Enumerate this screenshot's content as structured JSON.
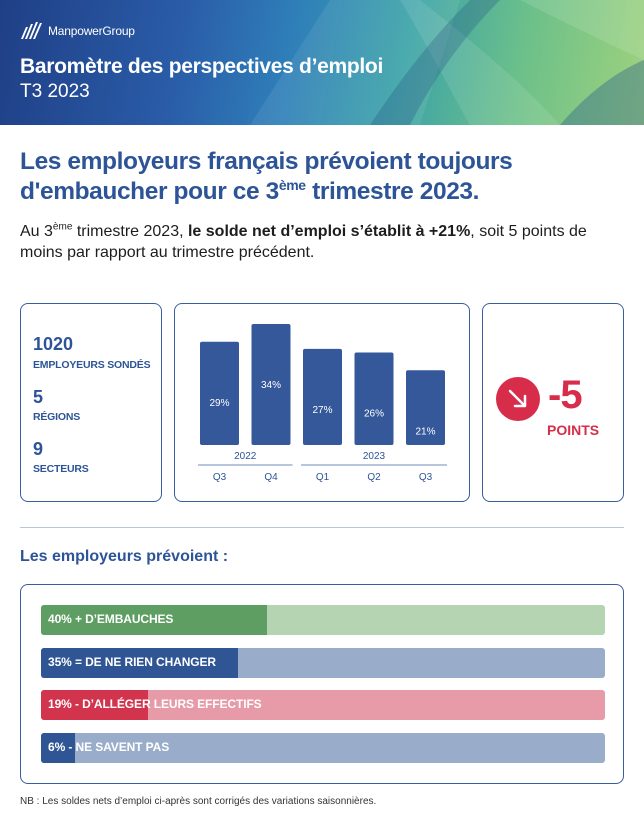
{
  "header": {
    "brand": "ManpowerGroup",
    "title": "Baromètre des perspectives d’emploi",
    "subtitle": "T3 2023",
    "logo_icon": "manpower-logo-icon"
  },
  "headline": {
    "line1": "Les employeurs français prévoient toujours",
    "line2_a": "d'embaucher pour ce 3",
    "line2_sup": "ème",
    "line2_b": " trimestre 2023."
  },
  "intro": {
    "a": "Au 3",
    "sup": "ème",
    "b": " trimestre 2023, ",
    "bold": "le solde net d’emploi s’établit à +21%",
    "c": ", soit 5 points de moins par rapport au trimestre précédent."
  },
  "stats": [
    {
      "value": "1020",
      "label": "EMPLOYEURS SONDÉS"
    },
    {
      "value": "5",
      "label": "RÉGIONS"
    },
    {
      "value": "9",
      "label": "SECTEURS"
    }
  ],
  "delta": {
    "value": "-5",
    "unit": "POINTS",
    "icon": "arrow-down-right-icon",
    "color": "#d72d4a"
  },
  "section_title": "Les employeurs prévoient :",
  "note": "NB : Les soldes nets d’emploi ci-après sont corrigés des variations saisonnières.",
  "colors": {
    "primary": "#2d5497",
    "bar": "#34589a",
    "green": "#5e9e62",
    "green_light": "#b5d4b1",
    "blue": "#2f5595",
    "blue_light": "#99adcb",
    "red": "#d2344e",
    "red_light": "#e79aa7"
  },
  "chart_data": [
    {
      "type": "bar",
      "categories": [
        "Q3",
        "Q4",
        "Q1",
        "Q2",
        "Q3"
      ],
      "groups": [
        {
          "label": "2022",
          "categories": [
            "Q3",
            "Q4"
          ]
        },
        {
          "label": "2023",
          "categories": [
            "Q1",
            "Q2",
            "Q3"
          ]
        }
      ],
      "values": [
        29,
        34,
        27,
        26,
        21
      ],
      "data_labels": [
        "29%",
        "34%",
        "27%",
        "26%",
        "21%"
      ],
      "title": "",
      "xlabel": "",
      "ylabel": "",
      "ylim": [
        0,
        34
      ]
    },
    {
      "type": "bar",
      "orientation": "horizontal",
      "categories": [
        "D’EMBAUCHES",
        "DE NE RIEN CHANGER",
        "D’ALLÉGER LEURS EFFECTIFS",
        "NE SAVENT PAS"
      ],
      "values": [
        40,
        35,
        19,
        6
      ],
      "data_labels": [
        "40% + D’EMBAUCHES",
        "35% = DE NE RIEN CHANGER",
        "19% - D’ALLÉGER LEURS EFFECTIFS",
        "6% - NE SAVENT PAS"
      ],
      "colors": [
        "#5e9e62",
        "#2f5595",
        "#d2344e",
        "#2f5595"
      ],
      "track_colors": [
        "#b5d4b1",
        "#99adcb",
        "#e79aa7",
        "#99adcb"
      ],
      "xlim": [
        0,
        100
      ]
    }
  ]
}
